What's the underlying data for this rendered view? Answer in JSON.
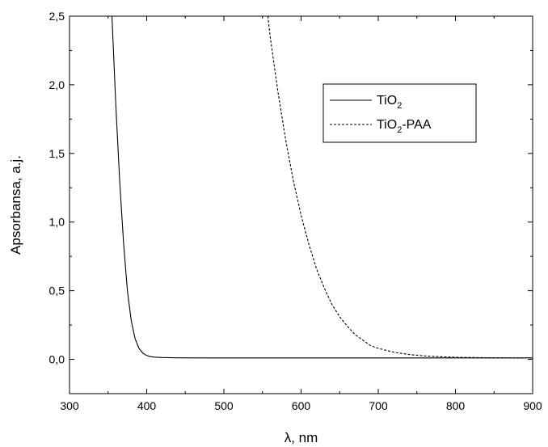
{
  "chart_data": {
    "type": "line",
    "title": "",
    "xlabel": "λ, nm",
    "ylabel": "Apsorbansa, a.j.",
    "xlim": [
      300,
      900
    ],
    "ylim": [
      -0.25,
      2.5
    ],
    "x_ticks": [
      300,
      400,
      500,
      600,
      700,
      800,
      900
    ],
    "x_tick_labels": [
      "300",
      "400",
      "500",
      "600",
      "700",
      "800",
      "900"
    ],
    "y_ticks": [
      0.0,
      0.5,
      1.0,
      1.5,
      2.0,
      2.5
    ],
    "y_tick_labels": [
      "0,0",
      "0,5",
      "1,0",
      "1,5",
      "2,0",
      "2,5"
    ],
    "grid": false,
    "legend_position": "top-right",
    "series": [
      {
        "name_base": "TiO",
        "name_sub": "2",
        "name_suffix": "",
        "style": "solid",
        "color": "#000000",
        "x": [
          355,
          360,
          365,
          370,
          375,
          380,
          385,
          390,
          395,
          400,
          405,
          410,
          420,
          440,
          500,
          600,
          700,
          800,
          900
        ],
        "y": [
          2.5,
          1.85,
          1.3,
          0.85,
          0.5,
          0.28,
          0.15,
          0.08,
          0.045,
          0.028,
          0.02,
          0.016,
          0.013,
          0.011,
          0.01,
          0.01,
          0.01,
          0.01,
          0.01
        ]
      },
      {
        "name_base": "TiO",
        "name_sub": "2",
        "name_suffix": "-PAA",
        "style": "dashed",
        "color": "#000000",
        "x": [
          557,
          560,
          570,
          580,
          590,
          600,
          610,
          620,
          630,
          640,
          650,
          660,
          670,
          680,
          690,
          700,
          720,
          740,
          760,
          780,
          800,
          850,
          900
        ],
        "y": [
          2.5,
          2.35,
          1.95,
          1.6,
          1.3,
          1.05,
          0.84,
          0.66,
          0.52,
          0.4,
          0.31,
          0.24,
          0.18,
          0.14,
          0.1,
          0.08,
          0.052,
          0.035,
          0.025,
          0.019,
          0.015,
          0.011,
          0.01
        ]
      }
    ]
  }
}
